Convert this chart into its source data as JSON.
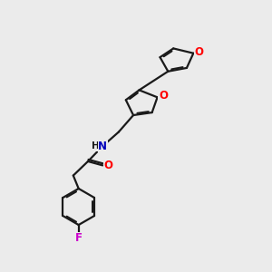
{
  "bg_color": "#ebebeb",
  "bond_color": "#1a1a1a",
  "oxygen_color": "#ff0000",
  "nitrogen_color": "#0000bb",
  "fluorine_color": "#cc00cc",
  "line_width": 1.6,
  "figsize": [
    3.0,
    3.0
  ],
  "dpi": 100,
  "xlim": [
    0,
    10
  ],
  "ylim": [
    0,
    10
  ]
}
